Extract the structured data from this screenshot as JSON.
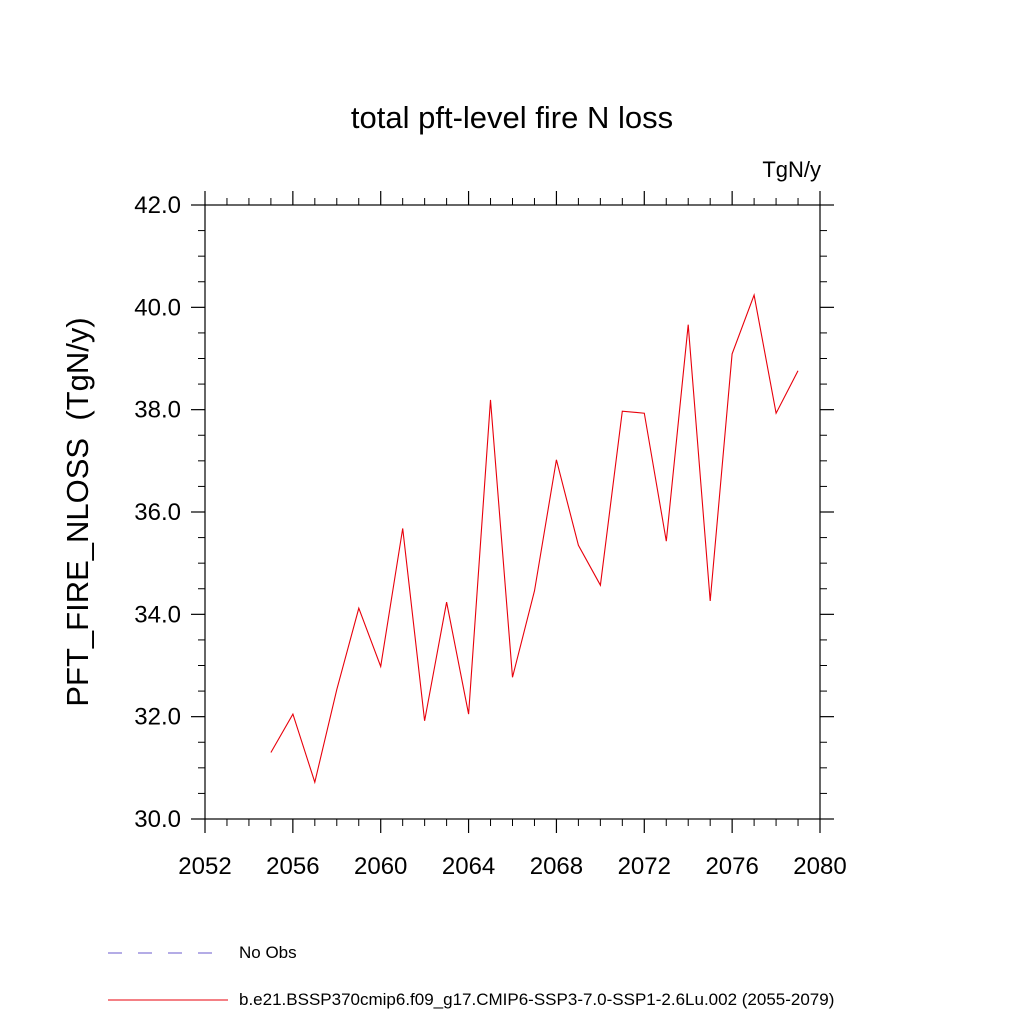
{
  "chart_data": {
    "type": "line",
    "title": "total pft-level fire N loss",
    "units_label": "TgN/y",
    "ylabel": "PFT_FIRE_NLOSS  (TgN/y)",
    "xlabel": "",
    "xlim": [
      2052,
      2080
    ],
    "ylim": [
      30.0,
      42.0
    ],
    "x_ticks": [
      "2052",
      "2056",
      "2060",
      "2064",
      "2068",
      "2072",
      "2076",
      "2080"
    ],
    "x_tick_values": [
      2052,
      2056,
      2060,
      2064,
      2068,
      2072,
      2076,
      2080
    ],
    "y_ticks": [
      "30.0",
      "32.0",
      "34.0",
      "36.0",
      "38.0",
      "40.0",
      "42.0"
    ],
    "y_tick_values": [
      30,
      32,
      34,
      36,
      38,
      40,
      42
    ],
    "grid": false,
    "series": [
      {
        "name": "b.e21.BSSP370cmip6.f09_g17.CMIP6-SSP3-7.0-SSP1-2.6Lu.002 (2055-2079)",
        "color": "#e8000b",
        "style": "solid",
        "x": [
          2055,
          2056,
          2057,
          2058,
          2059,
          2060,
          2061,
          2062,
          2063,
          2064,
          2065,
          2066,
          2067,
          2068,
          2069,
          2070,
          2071,
          2072,
          2073,
          2074,
          2075,
          2076,
          2077,
          2078,
          2079
        ],
        "y": [
          31.3,
          32.05,
          30.72,
          32.53,
          34.12,
          32.98,
          35.68,
          31.92,
          34.24,
          32.05,
          38.19,
          32.77,
          34.46,
          37.02,
          35.35,
          34.57,
          37.97,
          37.93,
          35.43,
          39.66,
          34.26,
          39.09,
          40.24,
          37.93,
          38.76
        ]
      }
    ],
    "legend": [
      {
        "label": "No Obs",
        "color": "#6a5acd",
        "style": "dashed"
      },
      {
        "label": "b.e21.BSSP370cmip6.f09_g17.CMIP6-SSP3-7.0-SSP1-2.6Lu.002 (2055-2079)",
        "color": "#e8000b",
        "style": "solid"
      }
    ]
  }
}
